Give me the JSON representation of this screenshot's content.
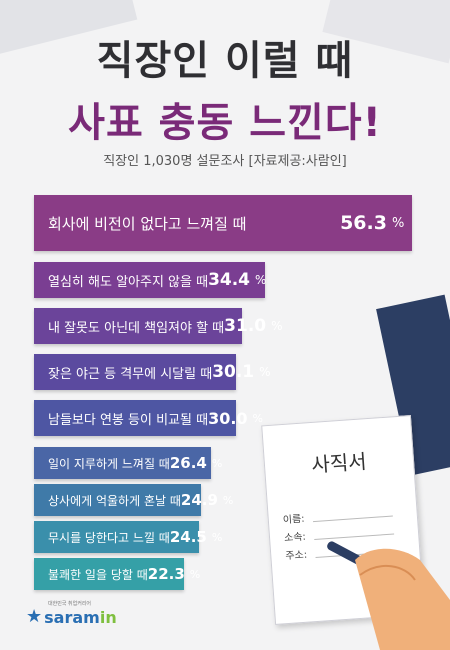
{
  "header": {
    "title_line1": "직장인 이럴 때",
    "title_line2": "사표 충동 느낀다!",
    "subtitle": "직장인 1,030명 설문조사 [자료제공:사람인]"
  },
  "chart_data": {
    "type": "bar",
    "orientation": "horizontal",
    "categories": [
      "회사에 비전이 없다고 느껴질 때",
      "열심히 해도 알아주지 않을 때",
      "내 잘못도 아닌데 책임져야 할 때",
      "잦은 야근 등 격무에 시달릴 때",
      "남들보다 연봉 등이 비교될 때",
      "일이 지루하게 느껴질 때",
      "상사에게 억울하게 혼날 때",
      "무시를 당한다고 느낄 때",
      "불쾌한 일을 당할 때"
    ],
    "values": [
      56.3,
      34.4,
      31.0,
      30.1,
      30.0,
      26.4,
      24.9,
      24.5,
      22.3
    ],
    "value_labels": [
      "56.3",
      "34.4",
      "31.0",
      "30.1",
      "30.0",
      "26.4",
      "24.9",
      "24.5",
      "22.3"
    ],
    "unit": "%",
    "colors": [
      "#8a3c86",
      "#7a3e92",
      "#6b449a",
      "#5b4a9f",
      "#4e56a3",
      "#4a66a6",
      "#3f7aa8",
      "#3a8fab",
      "#35a0a7"
    ]
  },
  "document": {
    "title": "사직서",
    "fields": [
      "이름:",
      "소속:",
      "주소:"
    ]
  },
  "logo": {
    "name": "saram",
    "name_suffix": "in",
    "tagline": "대한민국 취업커리어"
  }
}
